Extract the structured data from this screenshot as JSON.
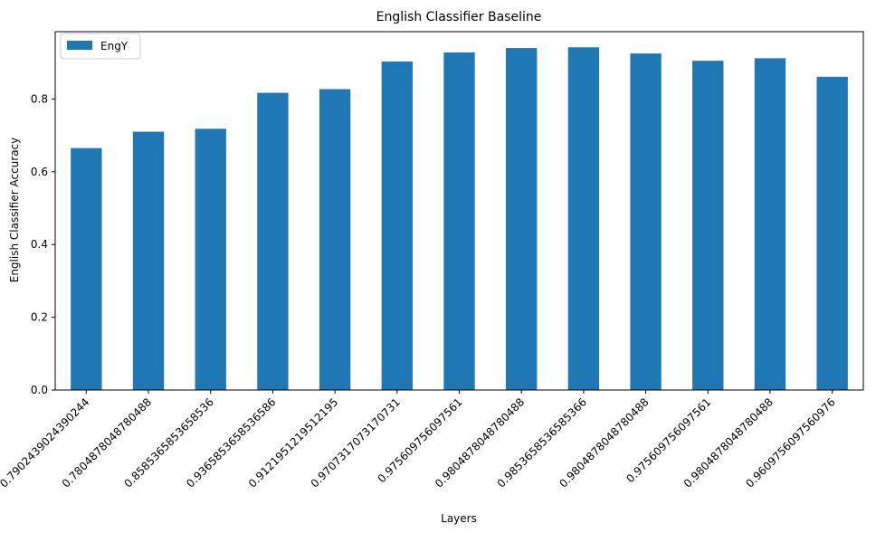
{
  "chart_data": {
    "type": "bar",
    "title": "English Classifier Baseline",
    "xlabel": "Layers",
    "ylabel": "English Classifier Accuracy",
    "categories": [
      "0.7902439024390244",
      "0.7804878048780488",
      "0.8585365853658536",
      "0.9365853658536586",
      "0.9121951219512195",
      "0.9707317073170731",
      "0.975609756097561",
      "0.9804878048780488",
      "0.9853658536585366",
      "0.9804878048780488",
      "0.975609756097561",
      "0.9804878048780488",
      "0.9609756097560976"
    ],
    "series": [
      {
        "name": "EngY",
        "color": "#1f77b4",
        "values": [
          0.665,
          0.71,
          0.718,
          0.817,
          0.827,
          0.903,
          0.928,
          0.94,
          0.942,
          0.925,
          0.905,
          0.912,
          0.861
        ]
      }
    ],
    "ylim": [
      0,
      0.985
    ],
    "yticks": [
      0.0,
      0.2,
      0.4,
      0.6,
      0.8
    ],
    "ytick_labels": [
      "0.0",
      "0.2",
      "0.4",
      "0.6",
      "0.8"
    ],
    "grid": false,
    "legend_position": "upper left"
  }
}
